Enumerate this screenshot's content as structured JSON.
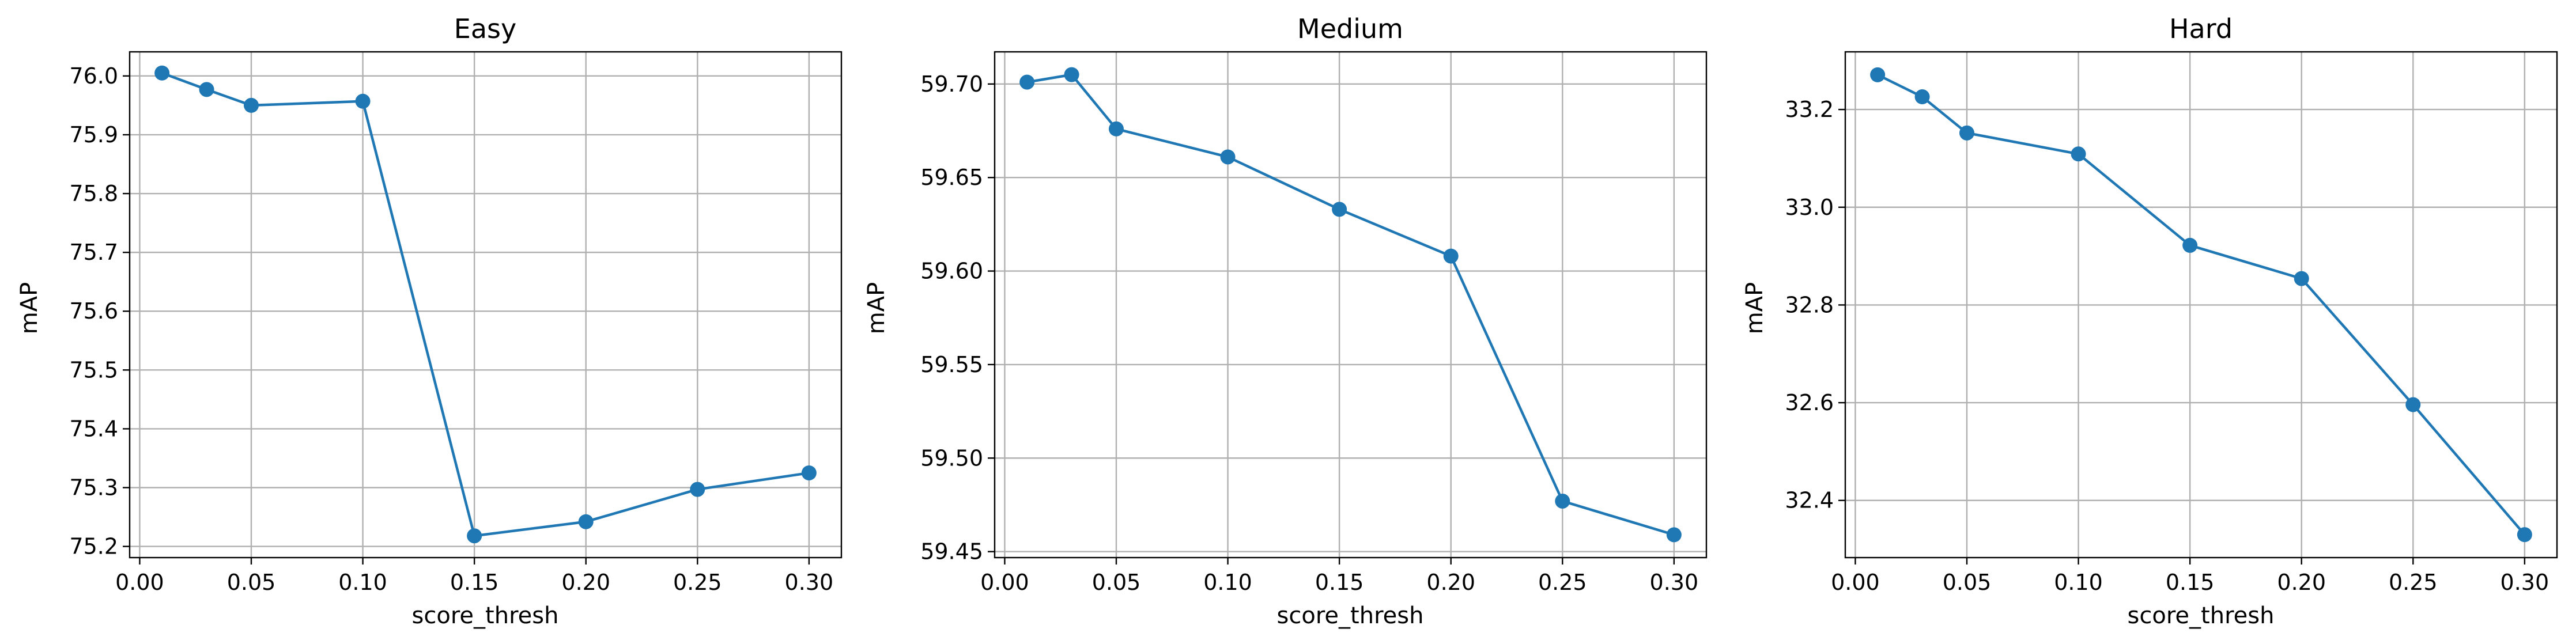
{
  "chart_data": [
    {
      "type": "line",
      "title": "Easy",
      "xlabel": "score_thresh",
      "ylabel": "mAP",
      "x": [
        0.01,
        0.03,
        0.05,
        0.1,
        0.15,
        0.2,
        0.25,
        0.3
      ],
      "series": [
        {
          "values": [
            76.005,
            75.977,
            75.95,
            75.957,
            75.218,
            75.242,
            75.297,
            75.325
          ]
        }
      ],
      "xlim": [
        -0.0045,
        0.3145
      ],
      "ylim": [
        75.181,
        76.041
      ],
      "xticks": [
        0.0,
        0.05,
        0.1,
        0.15,
        0.2,
        0.25,
        0.3
      ],
      "xtick_labels": [
        "0.00",
        "0.05",
        "0.10",
        "0.15",
        "0.20",
        "0.25",
        "0.30"
      ],
      "yticks": [
        75.2,
        75.3,
        75.4,
        75.5,
        75.6,
        75.7,
        75.8,
        75.9,
        76.0
      ],
      "ytick_labels": [
        "75.2",
        "75.3",
        "75.4",
        "75.5",
        "75.6",
        "75.7",
        "75.8",
        "75.9",
        "76.0"
      ],
      "grid": true,
      "color": "#1f77b4"
    },
    {
      "type": "line",
      "title": "Medium",
      "xlabel": "score_thresh",
      "ylabel": "mAP",
      "x": [
        0.01,
        0.03,
        0.05,
        0.1,
        0.15,
        0.2,
        0.25,
        0.3
      ],
      "series": [
        {
          "values": [
            59.701,
            59.705,
            59.676,
            59.661,
            59.633,
            59.608,
            59.477,
            59.459
          ]
        }
      ],
      "xlim": [
        -0.0045,
        0.3145
      ],
      "ylim": [
        59.4468,
        59.7172
      ],
      "xticks": [
        0.0,
        0.05,
        0.1,
        0.15,
        0.2,
        0.25,
        0.3
      ],
      "xtick_labels": [
        "0.00",
        "0.05",
        "0.10",
        "0.15",
        "0.20",
        "0.25",
        "0.30"
      ],
      "yticks": [
        59.45,
        59.5,
        59.55,
        59.6,
        59.65,
        59.7
      ],
      "ytick_labels": [
        "59.45",
        "59.50",
        "59.55",
        "59.60",
        "59.65",
        "59.70"
      ],
      "grid": true,
      "color": "#1f77b4"
    },
    {
      "type": "line",
      "title": "Hard",
      "xlabel": "score_thresh",
      "ylabel": "mAP",
      "x": [
        0.01,
        0.03,
        0.05,
        0.1,
        0.15,
        0.2,
        0.25,
        0.3
      ],
      "series": [
        {
          "values": [
            33.271,
            33.226,
            33.152,
            33.109,
            32.922,
            32.854,
            32.596,
            32.33
          ]
        }
      ],
      "xlim": [
        -0.0045,
        0.3145
      ],
      "ylim": [
        32.283,
        33.318
      ],
      "xticks": [
        0.0,
        0.05,
        0.1,
        0.15,
        0.2,
        0.25,
        0.3
      ],
      "xtick_labels": [
        "0.00",
        "0.05",
        "0.10",
        "0.15",
        "0.20",
        "0.25",
        "0.30"
      ],
      "yticks": [
        32.4,
        32.6,
        32.8,
        33.0,
        33.2
      ],
      "ytick_labels": [
        "32.4",
        "32.6",
        "32.8",
        "33.0",
        "33.2"
      ],
      "grid": true,
      "color": "#1f77b4"
    }
  ]
}
